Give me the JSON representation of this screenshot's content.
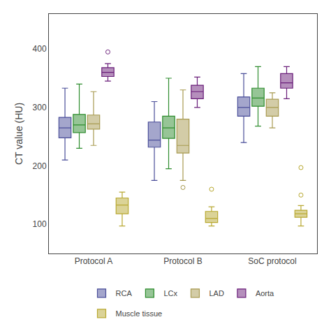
{
  "chart_data": {
    "type": "box",
    "title": "",
    "ylabel": "CT value (HU)",
    "categories": [
      "Protocol A",
      "Protocol B",
      "SoC protocol"
    ],
    "series": [
      {
        "name": "RCA",
        "color": "#4a4e99",
        "values": [
          {
            "whislo": 210,
            "q1": 248,
            "med": 265,
            "q3": 283,
            "whishi": 333,
            "fliers": []
          },
          {
            "whislo": 175,
            "q1": 232,
            "med": 244,
            "q3": 275,
            "whishi": 310,
            "fliers": []
          },
          {
            "whislo": 240,
            "q1": 285,
            "med": 300,
            "q3": 318,
            "whishi": 358,
            "fliers": []
          }
        ]
      },
      {
        "name": "LCx",
        "color": "#2d8c2d",
        "values": [
          {
            "whislo": 230,
            "q1": 257,
            "med": 270,
            "q3": 288,
            "whishi": 340,
            "fliers": []
          },
          {
            "whislo": 195,
            "q1": 247,
            "med": 265,
            "q3": 285,
            "whishi": 350,
            "fliers": []
          },
          {
            "whislo": 268,
            "q1": 302,
            "med": 316,
            "q3": 333,
            "whishi": 370,
            "fliers": []
          }
        ]
      },
      {
        "name": "LAD",
        "color": "#a89a50",
        "values": [
          {
            "whislo": 235,
            "q1": 263,
            "med": 272,
            "q3": 287,
            "whishi": 327,
            "fliers": []
          },
          {
            "whislo": 175,
            "q1": 222,
            "med": 235,
            "q3": 280,
            "whishi": 330,
            "fliers": [
              163
            ]
          },
          {
            "whislo": 265,
            "q1": 285,
            "med": 300,
            "q3": 314,
            "whishi": 325,
            "fliers": []
          }
        ]
      },
      {
        "name": "Aorta",
        "color": "#6b1f7a",
        "values": [
          {
            "whislo": 345,
            "q1": 353,
            "med": 360,
            "q3": 368,
            "whishi": 375,
            "fliers": [
              395
            ]
          },
          {
            "whislo": 300,
            "q1": 315,
            "med": 327,
            "q3": 338,
            "whishi": 352,
            "fliers": []
          },
          {
            "whislo": 315,
            "q1": 333,
            "med": 342,
            "q3": 358,
            "whishi": 370,
            "fliers": []
          }
        ]
      },
      {
        "name": "Muscle tissue",
        "color": "#b8a830",
        "values": [
          {
            "whislo": 97,
            "q1": 118,
            "med": 133,
            "q3": 145,
            "whishi": 155,
            "fliers": []
          },
          {
            "whislo": 97,
            "q1": 103,
            "med": 110,
            "q3": 122,
            "whishi": 130,
            "fliers": [
              160
            ]
          },
          {
            "whislo": 97,
            "q1": 112,
            "med": 118,
            "q3": 124,
            "whishi": 132,
            "fliers": [
              150,
              197
            ]
          }
        ]
      }
    ],
    "ylim": [
      50,
      460
    ],
    "yticks": [
      100,
      200,
      300,
      400
    ],
    "grid": false,
    "legend": "bottom"
  }
}
